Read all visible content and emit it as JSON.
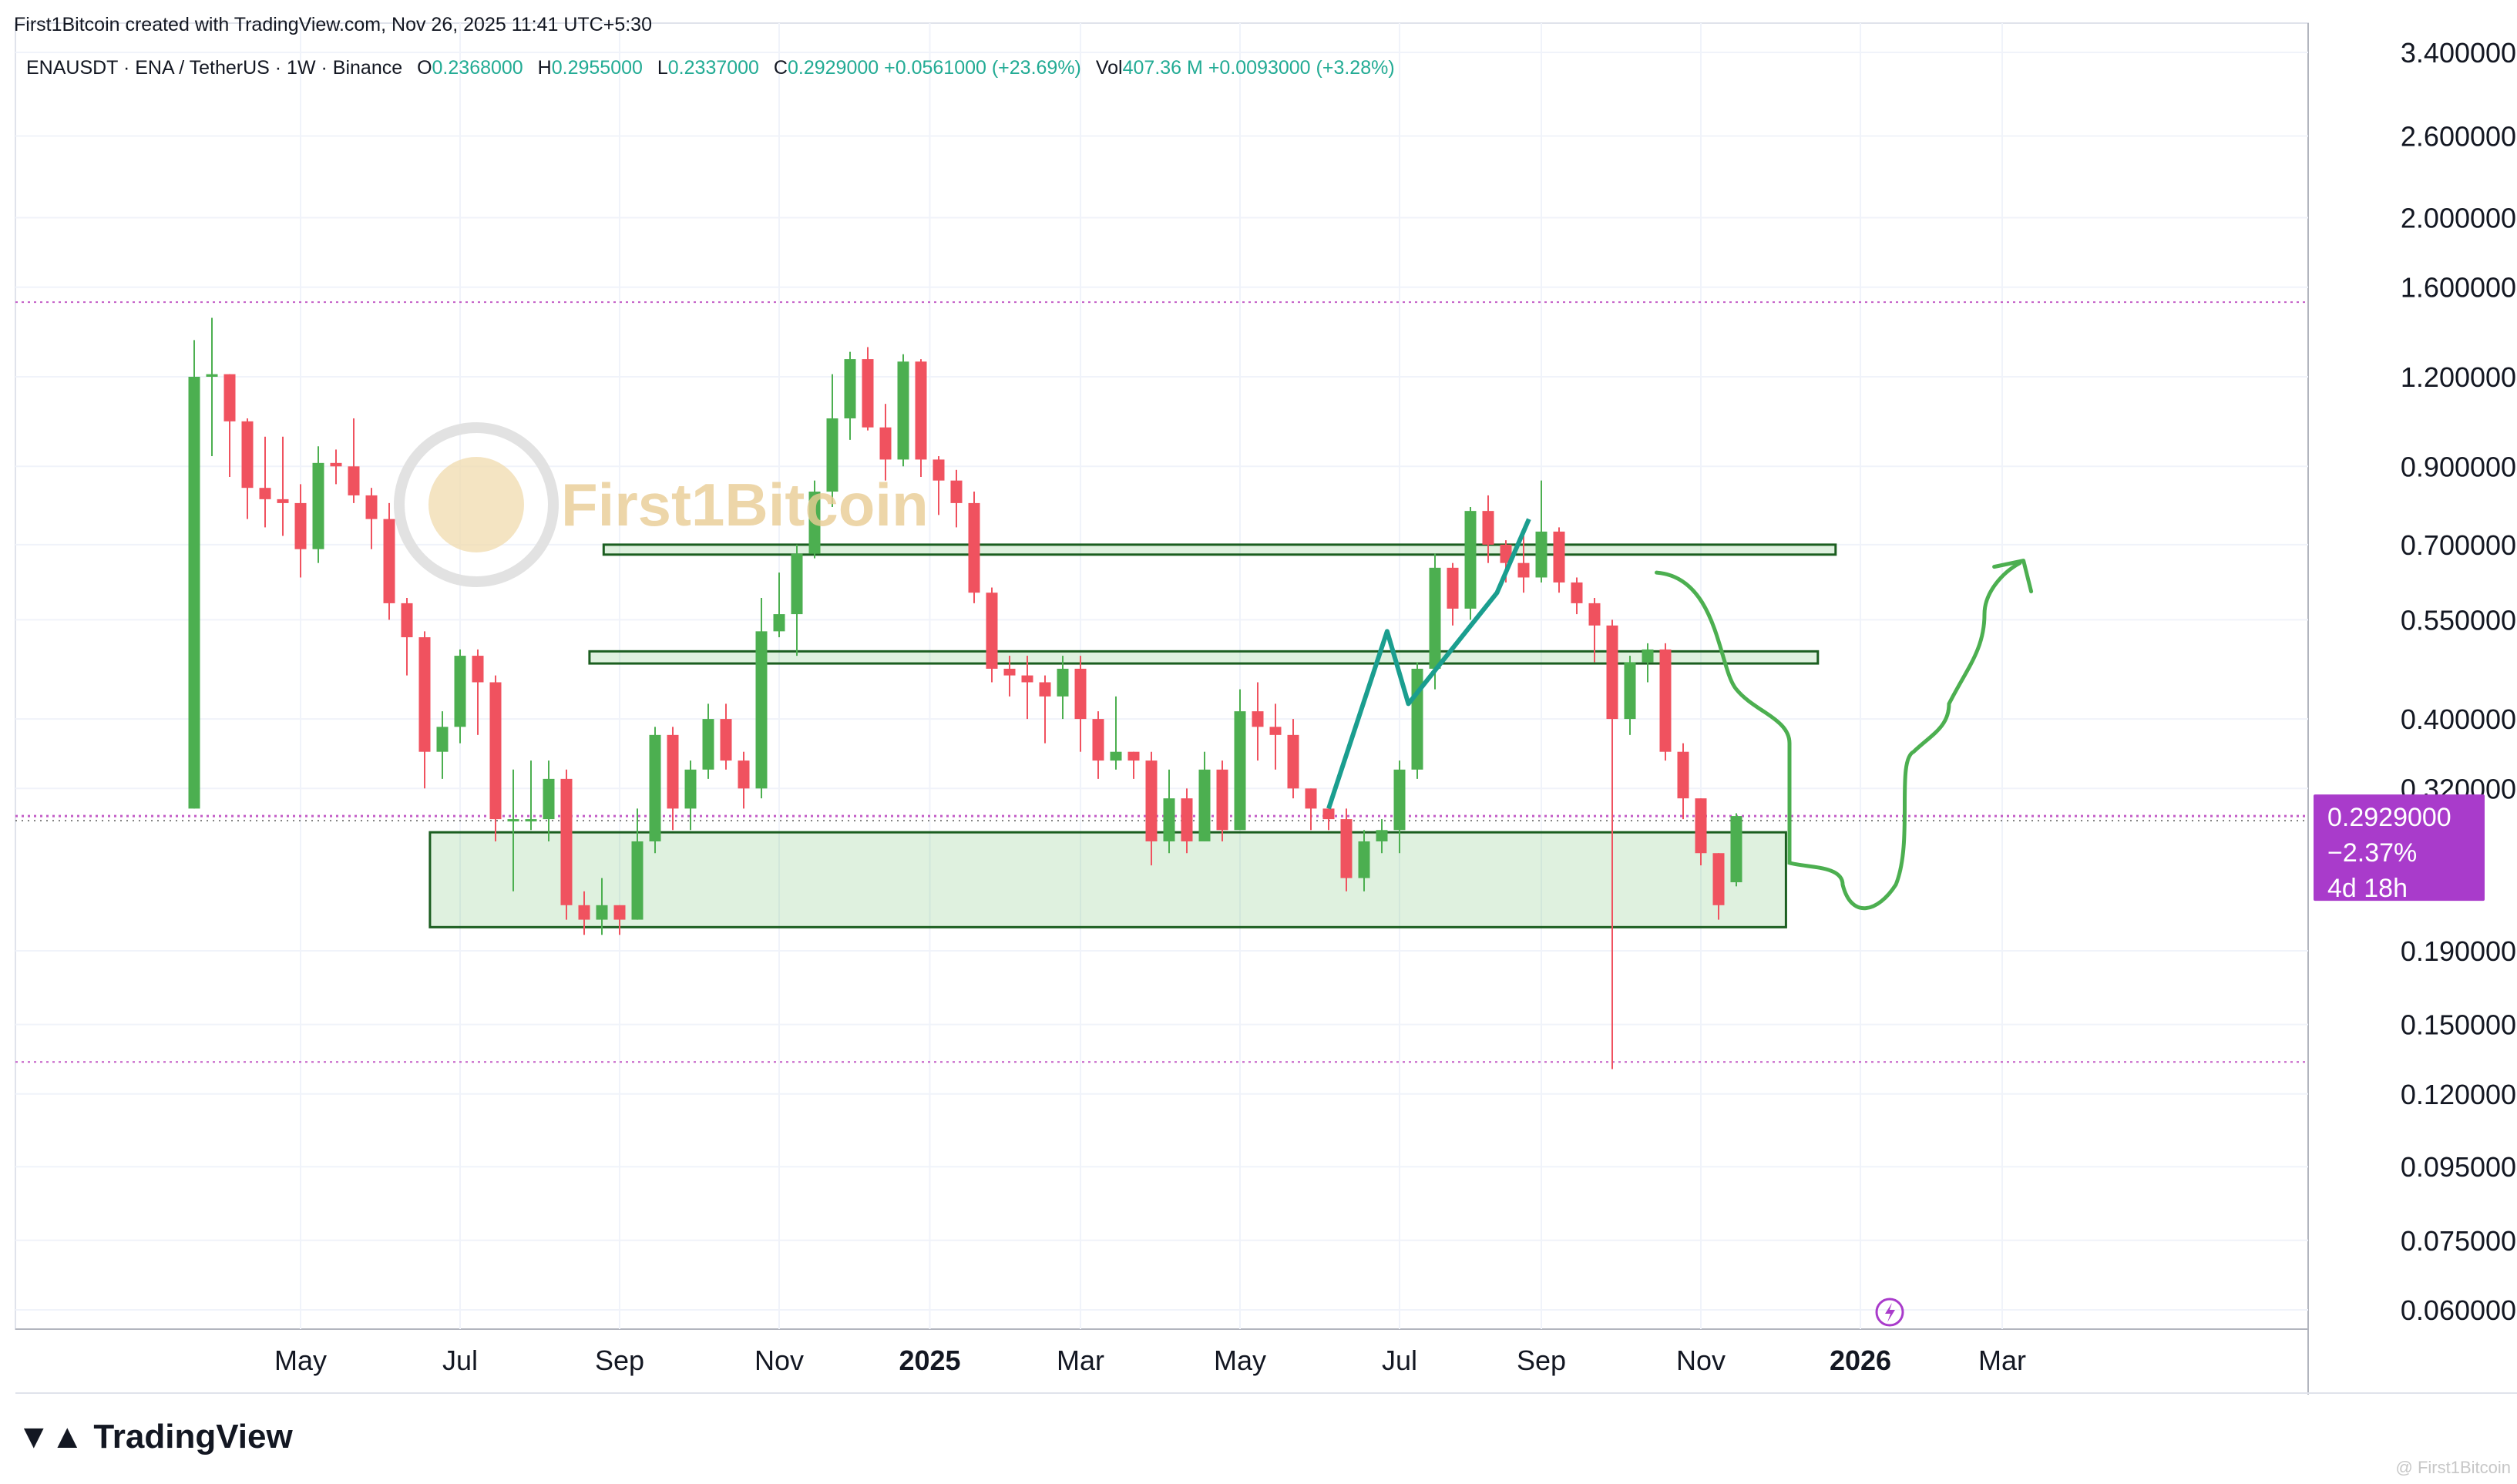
{
  "header": {
    "credit": "First1Bitcoin created with TradingView.com, Nov 26, 2025 11:41 UTC+5:30"
  },
  "legend": {
    "symbol": "ENAUSDT · ENA / TetherUS · 1W · Binance",
    "o_label": "O",
    "o_val": "0.2368000",
    "h_label": "H",
    "h_val": "0.2955000",
    "l_label": "L",
    "l_val": "0.2337000",
    "c_label": "C",
    "c_val": "0.2929000",
    "change": "+0.0561000 (+23.69%)",
    "vol_label": "Vol",
    "vol_val": "407.36 M",
    "vol_change": "+0.0093000 (+3.28%)"
  },
  "watermark": {
    "text": "First1Bitcoin",
    "corner": "@ First1Bitcoin"
  },
  "branding": {
    "logo_text": "TradingView"
  },
  "colors": {
    "up": "#4caf50",
    "down": "#f0525f",
    "zone": "#1b5e20",
    "arrow": "#4caf50",
    "path": "#1a9e8f",
    "price_label": "#a93bcb",
    "level": "#c35cc6"
  },
  "chart_data": {
    "type": "candlestick",
    "y_scale": "log",
    "ylim": [
      0.058,
      3.4
    ],
    "y_ticks": [
      "3.4000000",
      "2.6000000",
      "2.0000000",
      "1.6000000",
      "1.2000000",
      "0.9000000",
      "0.7000000",
      "0.5500000",
      "0.4000000",
      "0.3200000",
      "0.1900000",
      "0.1500000",
      "0.1200000",
      "0.0950000",
      "0.0750000",
      "0.0600000"
    ],
    "x_ticks": [
      {
        "label": "May",
        "week": 6,
        "bold": false
      },
      {
        "label": "Jul",
        "week": 15,
        "bold": false
      },
      {
        "label": "Sep",
        "week": 24,
        "bold": false
      },
      {
        "label": "Nov",
        "week": 33,
        "bold": false
      },
      {
        "label": "2025",
        "week": 41.5,
        "bold": true
      },
      {
        "label": "Mar",
        "week": 50,
        "bold": false
      },
      {
        "label": "May",
        "week": 59,
        "bold": false
      },
      {
        "label": "Jul",
        "week": 68,
        "bold": false
      },
      {
        "label": "Sep",
        "week": 76,
        "bold": false
      },
      {
        "label": "Nov",
        "week": 85,
        "bold": false
      },
      {
        "label": "2026",
        "week": 94,
        "bold": true
      },
      {
        "label": "Mar",
        "week": 102,
        "bold": false
      }
    ],
    "candles": [
      [
        0.3,
        1.2,
        1.35,
        0.3
      ],
      [
        1.2,
        1.21,
        1.45,
        0.93
      ],
      [
        1.21,
        1.04,
        1.21,
        0.87
      ],
      [
        1.04,
        0.84,
        1.05,
        0.76
      ],
      [
        0.84,
        0.81,
        0.99,
        0.74
      ],
      [
        0.81,
        0.8,
        0.99,
        0.72
      ],
      [
        0.8,
        0.69,
        0.85,
        0.63
      ],
      [
        0.69,
        0.91,
        0.96,
        0.66
      ],
      [
        0.91,
        0.9,
        0.95,
        0.85
      ],
      [
        0.9,
        0.82,
        1.05,
        0.8
      ],
      [
        0.82,
        0.76,
        0.84,
        0.69
      ],
      [
        0.76,
        0.58,
        0.8,
        0.55
      ],
      [
        0.58,
        0.52,
        0.59,
        0.46
      ],
      [
        0.52,
        0.36,
        0.53,
        0.32
      ],
      [
        0.36,
        0.39,
        0.41,
        0.33
      ],
      [
        0.39,
        0.49,
        0.5,
        0.37
      ],
      [
        0.49,
        0.45,
        0.5,
        0.38
      ],
      [
        0.45,
        0.29,
        0.46,
        0.27
      ],
      [
        0.29,
        0.29,
        0.34,
        0.23
      ],
      [
        0.29,
        0.29,
        0.35,
        0.28
      ],
      [
        0.29,
        0.33,
        0.35,
        0.27
      ],
      [
        0.33,
        0.22,
        0.34,
        0.21
      ],
      [
        0.22,
        0.21,
        0.23,
        0.2
      ],
      [
        0.21,
        0.22,
        0.24,
        0.2
      ],
      [
        0.22,
        0.21,
        0.22,
        0.2
      ],
      [
        0.21,
        0.27,
        0.3,
        0.21
      ],
      [
        0.27,
        0.38,
        0.39,
        0.26
      ],
      [
        0.38,
        0.3,
        0.39,
        0.28
      ],
      [
        0.3,
        0.34,
        0.35,
        0.28
      ],
      [
        0.34,
        0.4,
        0.42,
        0.33
      ],
      [
        0.4,
        0.35,
        0.42,
        0.34
      ],
      [
        0.35,
        0.32,
        0.36,
        0.3
      ],
      [
        0.32,
        0.53,
        0.59,
        0.31
      ],
      [
        0.53,
        0.56,
        0.64,
        0.52
      ],
      [
        0.56,
        0.68,
        0.7,
        0.49
      ],
      [
        0.68,
        0.83,
        0.86,
        0.67
      ],
      [
        0.83,
        1.05,
        1.21,
        0.79
      ],
      [
        1.05,
        1.27,
        1.3,
        0.98
      ],
      [
        1.27,
        1.02,
        1.32,
        1.01
      ],
      [
        1.02,
        0.92,
        1.1,
        0.86
      ],
      [
        0.92,
        1.26,
        1.29,
        0.9
      ],
      [
        1.26,
        0.92,
        1.27,
        0.87
      ],
      [
        0.92,
        0.86,
        0.93,
        0.77
      ],
      [
        0.86,
        0.8,
        0.89,
        0.74
      ],
      [
        0.8,
        0.6,
        0.83,
        0.58
      ],
      [
        0.6,
        0.47,
        0.61,
        0.45
      ],
      [
        0.47,
        0.46,
        0.49,
        0.43
      ],
      [
        0.46,
        0.45,
        0.49,
        0.4
      ],
      [
        0.45,
        0.43,
        0.46,
        0.37
      ],
      [
        0.43,
        0.47,
        0.49,
        0.4
      ],
      [
        0.47,
        0.4,
        0.49,
        0.36
      ],
      [
        0.4,
        0.35,
        0.41,
        0.33
      ],
      [
        0.35,
        0.36,
        0.43,
        0.34
      ],
      [
        0.36,
        0.35,
        0.36,
        0.33
      ],
      [
        0.35,
        0.27,
        0.36,
        0.25
      ],
      [
        0.27,
        0.31,
        0.34,
        0.26
      ],
      [
        0.31,
        0.27,
        0.32,
        0.26
      ],
      [
        0.27,
        0.34,
        0.36,
        0.27
      ],
      [
        0.34,
        0.28,
        0.35,
        0.27
      ],
      [
        0.28,
        0.41,
        0.44,
        0.28
      ],
      [
        0.41,
        0.39,
        0.45,
        0.35
      ],
      [
        0.39,
        0.38,
        0.42,
        0.34
      ],
      [
        0.38,
        0.32,
        0.4,
        0.31
      ],
      [
        0.32,
        0.3,
        0.32,
        0.28
      ],
      [
        0.3,
        0.29,
        0.3,
        0.28
      ],
      [
        0.29,
        0.24,
        0.3,
        0.23
      ],
      [
        0.24,
        0.27,
        0.28,
        0.23
      ],
      [
        0.27,
        0.28,
        0.29,
        0.26
      ],
      [
        0.28,
        0.34,
        0.35,
        0.26
      ],
      [
        0.34,
        0.47,
        0.48,
        0.33
      ],
      [
        0.47,
        0.65,
        0.68,
        0.44
      ],
      [
        0.65,
        0.57,
        0.66,
        0.54
      ],
      [
        0.57,
        0.78,
        0.79,
        0.55
      ],
      [
        0.78,
        0.7,
        0.82,
        0.66
      ],
      [
        0.7,
        0.66,
        0.71,
        0.62
      ],
      [
        0.66,
        0.63,
        0.72,
        0.6
      ],
      [
        0.63,
        0.73,
        0.86,
        0.62
      ],
      [
        0.73,
        0.62,
        0.74,
        0.6
      ],
      [
        0.62,
        0.58,
        0.63,
        0.56
      ],
      [
        0.58,
        0.54,
        0.59,
        0.48
      ],
      [
        0.54,
        0.4,
        0.55,
        0.13
      ],
      [
        0.4,
        0.48,
        0.49,
        0.38
      ],
      [
        0.48,
        0.5,
        0.51,
        0.45
      ],
      [
        0.5,
        0.36,
        0.51,
        0.35
      ],
      [
        0.36,
        0.31,
        0.37,
        0.29
      ],
      [
        0.31,
        0.26,
        0.31,
        0.25
      ],
      [
        0.26,
        0.22,
        0.26,
        0.21
      ],
      [
        0.2368,
        0.2929,
        0.2955,
        0.2337
      ]
    ],
    "zones": [
      {
        "w0": 23.1,
        "w1": 92.6,
        "hi": 0.7,
        "lo": 0.678
      },
      {
        "w0": 22.3,
        "w1": 91.6,
        "hi": 0.497,
        "lo": 0.478
      },
      {
        "w0": 13.3,
        "w1": 89.8,
        "hi": 0.278,
        "lo": 0.205
      }
    ],
    "levels": [
      1.525,
      0.2929,
      0.133
    ],
    "current_price": {
      "price": "0.2929000",
      "change": "−2.37%",
      "countdown": "4d 18h"
    }
  }
}
